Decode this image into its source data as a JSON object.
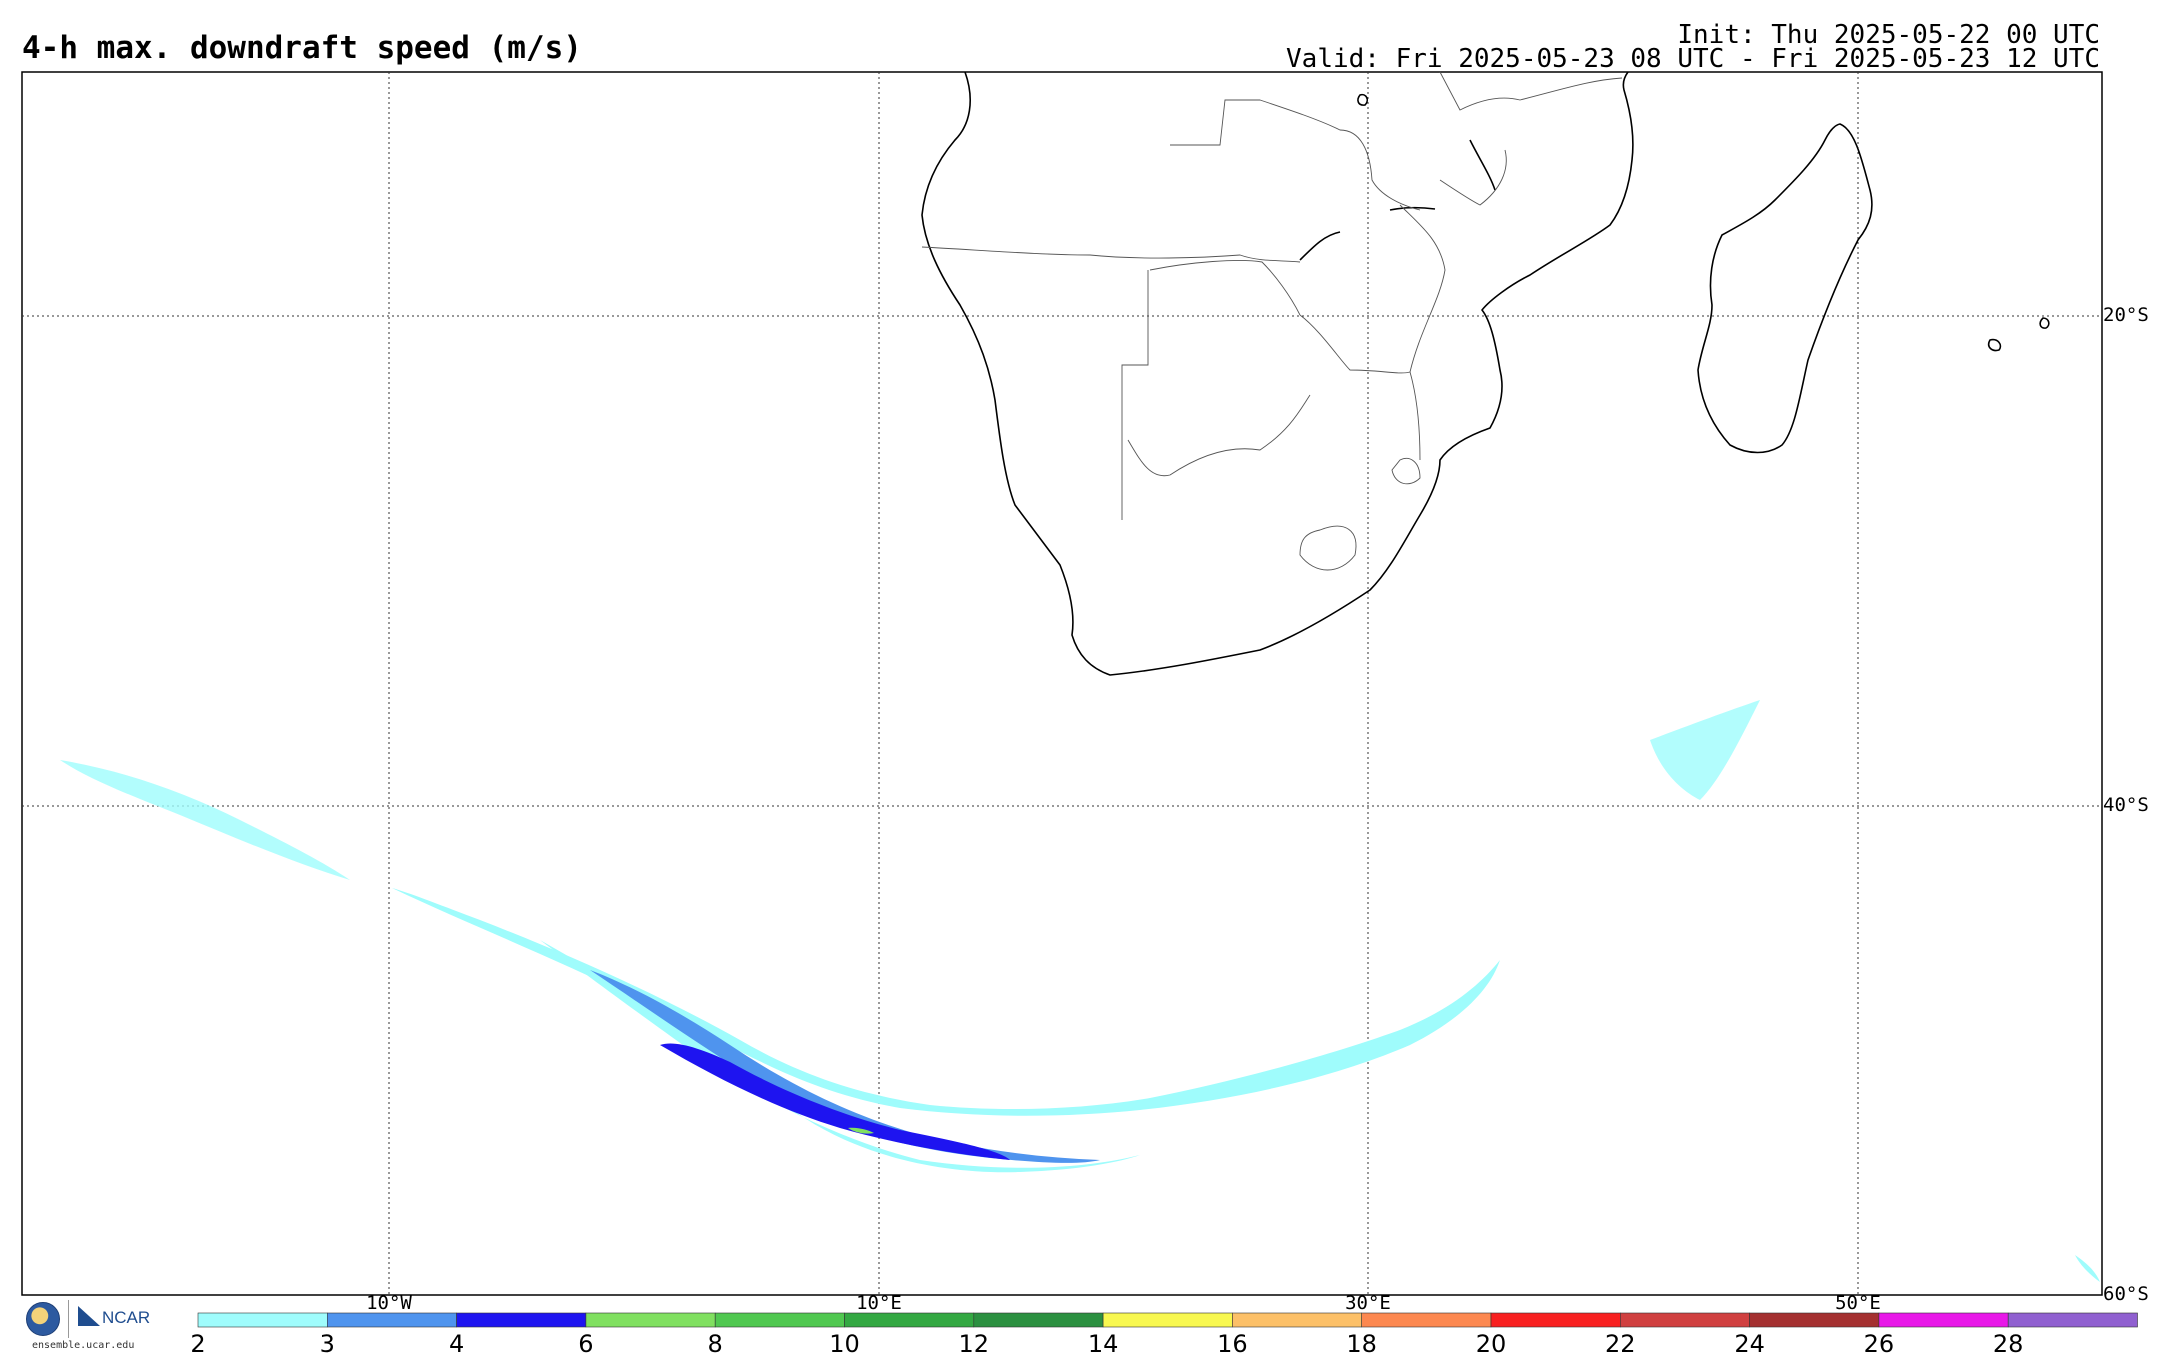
{
  "header": {
    "title": "4-h max. downdraft speed (m/s)",
    "init": "Init: Thu 2025-05-22 00 UTC",
    "valid": "Valid: Fri 2025-05-23 08 UTC - Fri 2025-05-23 12 UTC"
  },
  "map": {
    "lat_labels": [
      "20°S",
      "40°S",
      "60°S"
    ],
    "lon_labels": [
      "10°W",
      "10°E",
      "30°E",
      "50°E"
    ]
  },
  "colorbar": {
    "labels": [
      "2",
      "3",
      "4",
      "6",
      "8",
      "10",
      "12",
      "14",
      "16",
      "18",
      "20",
      "22",
      "24",
      "26",
      "28"
    ],
    "colors": [
      "#9ffcfc",
      "#4f94ee",
      "#1e14f0",
      "#80e060",
      "#50c850",
      "#33a842",
      "#2b9040",
      "#f8f850",
      "#fcc068",
      "#fc8850",
      "#f82020",
      "#d04040",
      "#a43030",
      "#e818e8",
      "#9060d0"
    ]
  },
  "logo": {
    "nsf": "NSF",
    "ncar": "NCAR",
    "url": "ensemble.ucar.edu"
  }
}
